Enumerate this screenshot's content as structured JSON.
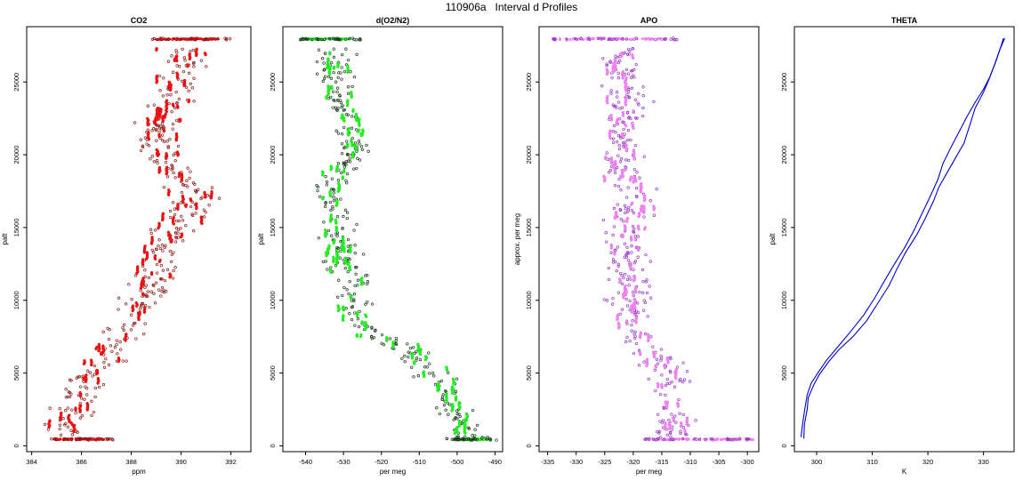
{
  "figure": {
    "title": "110906a   Interval d Profiles"
  },
  "chart_data": [
    {
      "type": "scatter",
      "title": "CO2",
      "xlabel": "ppm",
      "ylabel": "palt",
      "xlim": [
        383.8,
        392.8
      ],
      "ylim": [
        -400,
        28800
      ],
      "xticks": [
        384,
        386,
        388,
        390,
        392
      ],
      "yticks": [
        0,
        5000,
        10000,
        15000,
        20000,
        25000
      ],
      "grid": false,
      "colors": {
        "open": "#8b1a1a",
        "filled": "#ee1111"
      },
      "profile": [
        [
          385.3,
          500
        ],
        [
          385.7,
          2000
        ],
        [
          386.0,
          3500
        ],
        [
          386.6,
          5000
        ],
        [
          387.2,
          6500
        ],
        [
          387.8,
          8000
        ],
        [
          388.4,
          9500
        ],
        [
          388.8,
          11000
        ],
        [
          389.1,
          12500
        ],
        [
          389.5,
          14000
        ],
        [
          390.0,
          15500
        ],
        [
          390.6,
          17000
        ],
        [
          390.0,
          18500
        ],
        [
          389.3,
          20000
        ],
        [
          389.0,
          21500
        ],
        [
          389.4,
          23000
        ],
        [
          389.8,
          24500
        ],
        [
          390.1,
          26000
        ],
        [
          389.9,
          27300
        ]
      ],
      "spread": 0.8,
      "band_rows": [
        {
          "y": 450,
          "x": [
            384.9,
            387.0
          ],
          "open_x": [
            384.7,
            387.3
          ]
        },
        {
          "y": 27950,
          "x": [
            389.0,
            391.6
          ],
          "open_x": [
            388.7,
            392.0
          ]
        }
      ]
    },
    {
      "type": "scatter",
      "title": "d(O2/N2)",
      "xlabel": "per meg",
      "ylabel": "palt",
      "xlim": [
        -546,
        -488
      ],
      "ylim": [
        -400,
        28800
      ],
      "xticks": [
        -540,
        -530,
        -520,
        -510,
        -500,
        -490
      ],
      "yticks": [
        0,
        5000,
        10000,
        15000,
        20000,
        25000
      ],
      "grid": false,
      "colors": {
        "open": "#1a3a1a",
        "filled": "#22ee22"
      },
      "profile": [
        [
          -497,
          500
        ],
        [
          -500,
          2000
        ],
        [
          -502,
          3500
        ],
        [
          -507,
          5000
        ],
        [
          -512,
          6500
        ],
        [
          -522,
          7500
        ],
        [
          -527,
          8500
        ],
        [
          -528,
          10000
        ],
        [
          -526,
          11000
        ],
        [
          -530,
          12500
        ],
        [
          -531,
          14000
        ],
        [
          -532,
          15500
        ],
        [
          -533,
          17000
        ],
        [
          -531,
          18500
        ],
        [
          -528,
          20000
        ],
        [
          -527,
          21500
        ],
        [
          -530,
          23000
        ],
        [
          -532,
          24500
        ],
        [
          -532,
          26000
        ],
        [
          -532,
          27300
        ]
      ],
      "spread": 4,
      "band_rows": [
        {
          "y": 27950,
          "x": [
            -541,
            -528
          ],
          "open_x": [
            -542,
            -525
          ]
        },
        {
          "y": 450,
          "x": [
            -500,
            -491
          ],
          "open_x": [
            -503,
            -489
          ]
        }
      ]
    },
    {
      "type": "scatter",
      "title": "APO",
      "xlabel": "per meg",
      "ylabel": "approx. per meg",
      "xlim": [
        -336.5,
        -298
      ],
      "ylim": [
        -400,
        28800
      ],
      "xticks": [
        -335,
        -330,
        -325,
        -320,
        -315,
        -310,
        -305,
        -300
      ],
      "yticks": [
        0,
        5000,
        10000,
        15000,
        20000,
        25000
      ],
      "grid": false,
      "colors": {
        "open": "#9933cc",
        "filled": "#ee82ee"
      },
      "profile": [
        [
          -314,
          500
        ],
        [
          -313,
          2000
        ],
        [
          -313,
          3500
        ],
        [
          -314,
          5000
        ],
        [
          -317,
          6500
        ],
        [
          -320,
          8000
        ],
        [
          -320,
          9500
        ],
        [
          -320,
          11000
        ],
        [
          -321,
          12500
        ],
        [
          -321,
          14000
        ],
        [
          -321,
          15500
        ],
        [
          -320,
          17000
        ],
        [
          -321,
          18500
        ],
        [
          -322,
          20000
        ],
        [
          -322,
          21500
        ],
        [
          -321,
          23000
        ],
        [
          -322,
          24500
        ],
        [
          -322,
          26000
        ],
        [
          -322,
          27300
        ]
      ],
      "spread": 3.2,
      "band_rows": [
        {
          "y": 27950,
          "x": [
            -334,
            -314
          ],
          "open_x": [
            -334.5,
            -312
          ]
        },
        {
          "y": 450,
          "x": [
            -316,
            -299
          ],
          "open_x": [
            -318,
            -298.5
          ]
        }
      ]
    },
    {
      "type": "line",
      "title": "THETA",
      "xlabel": "K",
      "ylabel": "palt",
      "xlim": [
        296.0,
        335.5
      ],
      "ylim": [
        -400,
        28800
      ],
      "xticks": [
        300,
        310,
        320,
        330
      ],
      "yticks": [
        0,
        5000,
        10000,
        15000,
        20000,
        25000
      ],
      "grid": false,
      "colors": {
        "line": "#0000cc"
      },
      "series": [
        {
          "x": [
            297.7,
            297.8,
            298.3,
            298.5,
            299.5,
            300.5,
            302.2,
            304.0,
            306.5,
            309.0,
            311.0,
            313.0,
            314.5,
            316.0,
            318.0,
            319.5,
            321.0,
            322.0,
            323.5,
            325.0,
            326.5,
            327.5,
            328.5,
            330.0,
            331.0,
            332.0,
            333.0,
            333.6
          ],
          "y": [
            500,
            1500,
            2500,
            3300,
            4200,
            4900,
            5800,
            6600,
            7500,
            8600,
            9800,
            11000,
            12200,
            13300,
            14500,
            15600,
            16800,
            17800,
            18800,
            19800,
            20800,
            22000,
            23200,
            24300,
            25200,
            26200,
            27300,
            28000
          ]
        },
        {
          "x": [
            297.2,
            297.5,
            297.9,
            298.3,
            299.0,
            300.2,
            301.8,
            303.8,
            306.0,
            308.5,
            310.5,
            312.3,
            314.0,
            315.8,
            317.5,
            319.0,
            320.5,
            321.8,
            322.7,
            324.0,
            325.5,
            327.0,
            328.5,
            330.0,
            331.2,
            332.2,
            333.0,
            333.8
          ],
          "y": [
            600,
            1600,
            2600,
            3500,
            4300,
            5000,
            5900,
            6800,
            7800,
            9000,
            10200,
            11400,
            12500,
            13600,
            14800,
            16000,
            17200,
            18300,
            19400,
            20400,
            21500,
            22600,
            23600,
            24500,
            25400,
            26400,
            27300,
            28000
          ]
        }
      ]
    }
  ]
}
